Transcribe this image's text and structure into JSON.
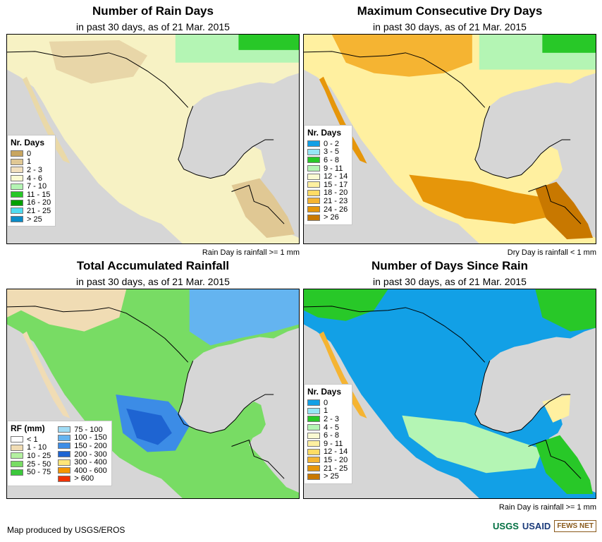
{
  "colors": {
    "ocean": "#d6d6d6",
    "border": "#000000"
  },
  "panels": [
    {
      "title": "Number of Rain Days",
      "subtitle": "in past 30 days, as of 21 Mar. 2015",
      "note": "Rain Day is rainfall >= 1 mm",
      "legend": {
        "title": "Nr. Days",
        "items": [
          {
            "label": "0",
            "color": "#c8a660"
          },
          {
            "label": "1",
            "color": "#e0c894"
          },
          {
            "label": "2 - 3",
            "color": "#f2e0be"
          },
          {
            "label": "4 - 6",
            "color": "#fafad2"
          },
          {
            "label": "7 - 10",
            "color": "#b4f5b4"
          },
          {
            "label": "11 - 15",
            "color": "#28c828"
          },
          {
            "label": "16 - 20",
            "color": "#00a000"
          },
          {
            "label": "21 - 25",
            "color": "#50dcf0"
          },
          {
            "label": "> 25",
            "color": "#0a8cc8"
          }
        ]
      }
    },
    {
      "title": "Maximum Consecutive Dry Days",
      "subtitle": "in past 30 days, as of 21 Mar. 2015",
      "note": "Dry Day is rainfall < 1 mm",
      "legend": {
        "title": "Nr. Days",
        "items": [
          {
            "label": "0 - 2",
            "color": "#12a0e6"
          },
          {
            "label": "3 - 5",
            "color": "#96e6f5"
          },
          {
            "label": "6 - 8",
            "color": "#28c828"
          },
          {
            "label": "9 - 11",
            "color": "#b4f5b4"
          },
          {
            "label": "12 - 14",
            "color": "#fafad2"
          },
          {
            "label": "15 - 17",
            "color": "#fff0a0"
          },
          {
            "label": "18 - 20",
            "color": "#ffdc64"
          },
          {
            "label": "21 - 23",
            "color": "#f5b432"
          },
          {
            "label": "24 - 26",
            "color": "#e6960a"
          },
          {
            "label": "> 26",
            "color": "#c87800"
          }
        ]
      }
    },
    {
      "title": "Total Accumulated Rainfall",
      "subtitle": "in past 30 days, as of 21 Mar. 2015",
      "note": "",
      "legend": {
        "title": "RF (mm)",
        "items": [
          {
            "label": "< 1",
            "color": "#ffffff"
          },
          {
            "label": "1 - 10",
            "color": "#f0dcb4"
          },
          {
            "label": "10 - 25",
            "color": "#b4f0a0"
          },
          {
            "label": "25 - 50",
            "color": "#78dc64"
          },
          {
            "label": "50 - 75",
            "color": "#3cc83c"
          },
          {
            "label": "75 - 100",
            "color": "#a0dcf5"
          },
          {
            "label": "100 - 150",
            "color": "#64b4f0"
          },
          {
            "label": "150 - 200",
            "color": "#3c8ce6"
          },
          {
            "label": "200 - 300",
            "color": "#1e64d2"
          },
          {
            "label": "300 - 400",
            "color": "#ffe678"
          },
          {
            "label": "400 - 600",
            "color": "#f59600"
          },
          {
            "label": "> 600",
            "color": "#f03200"
          }
        ]
      }
    },
    {
      "title": "Number of Days Since Rain",
      "subtitle": "in past 30 days, as of 21 Mar. 2015",
      "note": "Rain Day is rainfall >= 1 mm",
      "legend": {
        "title": "Nr. Days",
        "items": [
          {
            "label": "0",
            "color": "#12a0e6"
          },
          {
            "label": "1",
            "color": "#96e6f5"
          },
          {
            "label": "2 - 3",
            "color": "#28c828"
          },
          {
            "label": "4 - 5",
            "color": "#b4f5b4"
          },
          {
            "label": "6 - 8",
            "color": "#fafad2"
          },
          {
            "label": "9 - 11",
            "color": "#fff0a0"
          },
          {
            "label": "12 - 14",
            "color": "#ffdc64"
          },
          {
            "label": "15 - 20",
            "color": "#f5b432"
          },
          {
            "label": "21 - 25",
            "color": "#e6960a"
          },
          {
            "label": "> 25",
            "color": "#c87800"
          }
        ]
      }
    }
  ],
  "footer": {
    "credit": "Map produced by USGS/EROS",
    "logos": [
      "USGS",
      "USAID",
      "FEWS NET"
    ]
  }
}
